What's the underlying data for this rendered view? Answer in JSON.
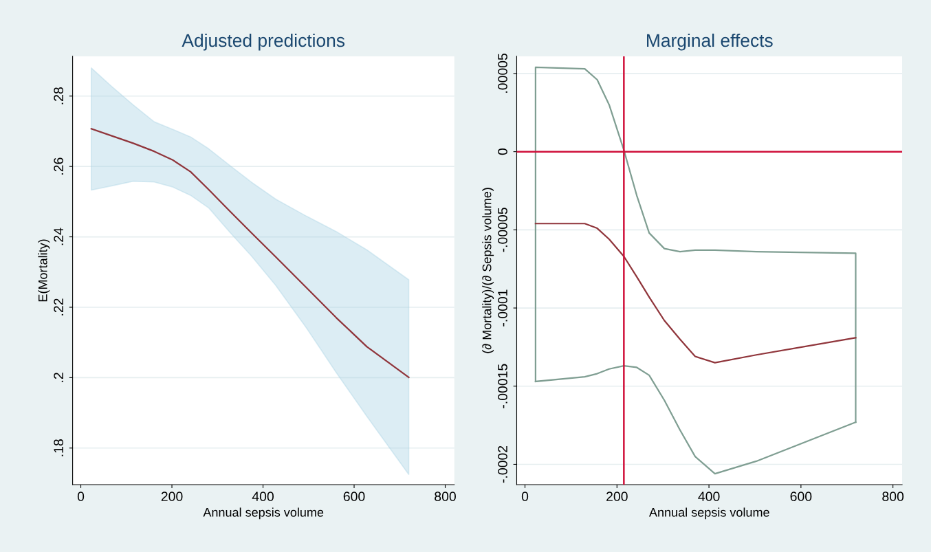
{
  "chart_data": [
    {
      "type": "area",
      "title": "Adjusted predictions",
      "xlabel": "Annual sepsis volume",
      "ylabel": "E(Mortality)",
      "xlim": [
        -18,
        820
      ],
      "xticks": [
        0,
        200,
        400,
        600,
        800
      ],
      "ylim": [
        0.1696,
        0.2913
      ],
      "yticks": [
        {
          "value": 0.18,
          "label": ".18"
        },
        {
          "value": 0.2,
          "label": ".2"
        },
        {
          "value": 0.22,
          "label": ".22"
        },
        {
          "value": 0.24,
          "label": ".24"
        },
        {
          "value": 0.26,
          "label": ".26"
        },
        {
          "value": 0.28,
          "label": ".28"
        }
      ],
      "grid": "y",
      "series": [
        {
          "type": "line",
          "color": "#90353b",
          "x": [
            23,
            68,
            115,
            161,
            201,
            241,
            281,
            328,
            375,
            428,
            495,
            561,
            628,
            720
          ],
          "values": [
            0.2707,
            0.2687,
            0.2666,
            0.2643,
            0.2619,
            0.2585,
            0.2534,
            0.2472,
            0.2411,
            0.2343,
            0.2256,
            0.217,
            0.2088,
            0.2001
          ],
          "upper": [
            0.288,
            0.2827,
            0.2775,
            0.2727,
            0.2706,
            0.2684,
            0.265,
            0.2602,
            0.2555,
            0.2507,
            0.2459,
            0.2415,
            0.2363,
            0.2278
          ],
          "lower": [
            0.2533,
            0.2545,
            0.2558,
            0.2556,
            0.2542,
            0.2518,
            0.2482,
            0.2412,
            0.2345,
            0.2262,
            0.2142,
            0.2014,
            0.189,
            0.1725
          ]
        }
      ]
    },
    {
      "type": "line",
      "title": "Marginal effects",
      "xlabel": "Annual sepsis volume",
      "ylabel": "(∂ Mortality)/(∂ Sepsis volume)",
      "xlim": [
        -18,
        820
      ],
      "xticks": [
        0,
        200,
        400,
        600,
        800
      ],
      "ylim": [
        -0.000213,
        6.1e-05
      ],
      "yticks": [
        {
          "value": -0.0002,
          "label": "-.0002"
        },
        {
          "value": -0.00015,
          "label": "-.00015"
        },
        {
          "value": -0.0001,
          "label": "-.0001"
        },
        {
          "value": -5e-05,
          "label": "-.00005"
        },
        0,
        {
          "value": 5e-05,
          "label": ".00005"
        }
      ],
      "grid": "y",
      "ref_lines": [
        {
          "axis": "y",
          "value": 0,
          "color": "#d0103a"
        },
        {
          "axis": "x",
          "value": 215,
          "color": "#d0103a"
        }
      ],
      "series": [
        {
          "type": "line",
          "color": "#7f9e92",
          "x": [
            23,
            23,
            130,
            157,
            183,
            215,
            243,
            270,
            303,
            337,
            370,
            413,
            503,
            719,
            719
          ],
          "values": [
            -0.000147,
            5.4e-05,
            5.3e-05,
            4.6e-05,
            3e-05,
            1e-06,
            -2.8e-05,
            -5.2e-05,
            -6.2e-05,
            -6.4e-05,
            -6.3e-05,
            -6.3e-05,
            -6.4e-05,
            -6.5e-05,
            -0.000173
          ]
        },
        {
          "type": "line",
          "color": "#90353b",
          "x": [
            23,
            130,
            157,
            183,
            215,
            243,
            270,
            303,
            337,
            370,
            413,
            503,
            719
          ],
          "values": [
            -4.6e-05,
            -4.6e-05,
            -4.9e-05,
            -5.6e-05,
            -6.7e-05,
            -8e-05,
            -9.3e-05,
            -0.000108,
            -0.00012,
            -0.000131,
            -0.000135,
            -0.00013,
            -0.000119
          ]
        },
        {
          "type": "line",
          "color": "#7f9e92",
          "x": [
            23,
            130,
            157,
            183,
            215,
            243,
            270,
            303,
            337,
            370,
            413,
            503,
            719
          ],
          "values": [
            -0.000147,
            -0.000144,
            -0.000142,
            -0.000139,
            -0.000137,
            -0.000138,
            -0.000143,
            -0.000159,
            -0.000178,
            -0.000195,
            -0.000206,
            -0.000198,
            -0.000173
          ]
        }
      ]
    }
  ]
}
